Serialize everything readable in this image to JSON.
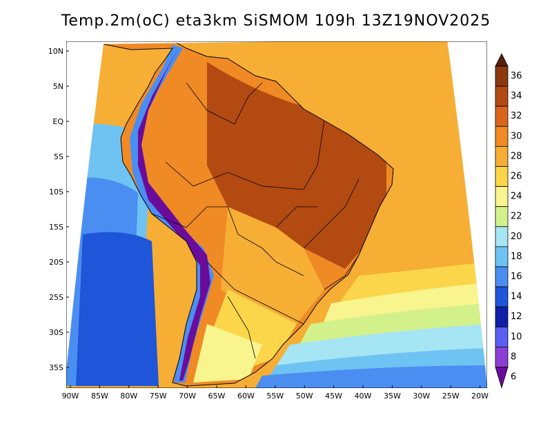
{
  "title": "Temp.2m(oC) eta3km SiSMOM 109h 13Z19NOV2025",
  "lat_labels": [
    "10N",
    "5N",
    "EQ",
    "5S",
    "10S",
    "15S",
    "20S",
    "25S",
    "30S",
    "35S"
  ],
  "lon_labels": [
    "90W",
    "85W",
    "80W",
    "75W",
    "70W",
    "65W",
    "60W",
    "55W",
    "50W",
    "45W",
    "40W",
    "35W",
    "30W",
    "25W",
    "20W"
  ],
  "colorbar": {
    "labels": [
      "36",
      "34",
      "32",
      "30",
      "28",
      "26",
      "24",
      "22",
      "20",
      "18",
      "16",
      "14",
      "12",
      "10",
      "8",
      "6"
    ],
    "colors": [
      "#6b2a12",
      "#8b3a10",
      "#b24a12",
      "#d9661c",
      "#f08a24",
      "#f6ae35",
      "#fbd64a",
      "#f8f48e",
      "#d3f18a",
      "#a6e5f4",
      "#6fc3f3",
      "#4a8ef1",
      "#1f55d9",
      "#0f1fa8",
      "#5a5ef2",
      "#8c3fd6",
      "#6a0c9b"
    ],
    "extremes": {
      "top": "#5a1f0c",
      "bottom": "#6a0c9b"
    }
  }
}
